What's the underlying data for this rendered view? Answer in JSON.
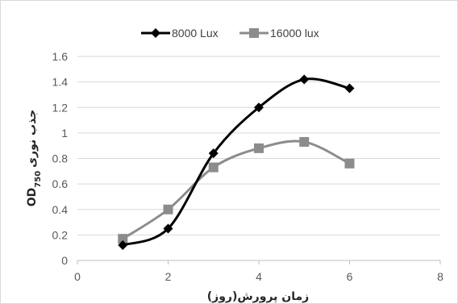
{
  "chart_data": {
    "type": "scatter",
    "mode": "smooth-lines-with-markers",
    "title": "",
    "xlabel": "زمان پرورش(روز)",
    "ylabel": "جذب نوری(OD 750)",
    "ylabel_parts": {
      "text": "جذب نوری",
      "od": "OD",
      "sub": "750"
    },
    "xlim": [
      0,
      8
    ],
    "ylim": [
      0,
      1.6
    ],
    "x_ticks": [
      "0",
      "2",
      "4",
      "6",
      "8"
    ],
    "y_ticks": [
      "0",
      "0.2",
      "0.4",
      "0.6",
      "0.8",
      "1",
      "1.2",
      "1.4",
      "1.6"
    ],
    "grid": "horizontal",
    "legend_position": "top",
    "series": [
      {
        "name": "8000 Lux",
        "color": "#000000",
        "marker": "diamond",
        "x": [
          1,
          2,
          3,
          4,
          5,
          6
        ],
        "y": [
          0.12,
          0.25,
          0.84,
          1.2,
          1.42,
          1.35
        ]
      },
      {
        "name": "16000 lux",
        "color": "#8c8c8c",
        "marker": "square",
        "x": [
          1,
          2,
          3,
          4,
          5,
          6
        ],
        "y": [
          0.17,
          0.4,
          0.73,
          0.88,
          0.93,
          0.76
        ]
      }
    ]
  }
}
